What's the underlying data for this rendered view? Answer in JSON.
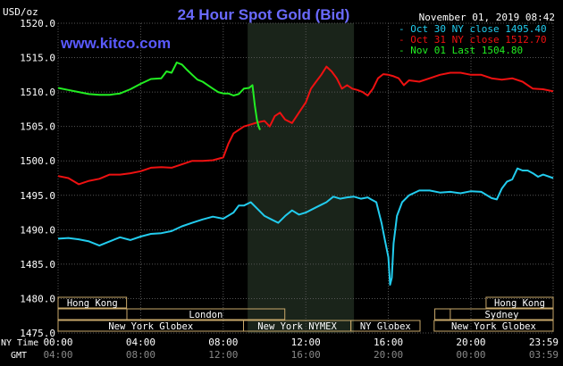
{
  "chart_data": {
    "type": "line",
    "title": "24 Hour Spot Gold (Bid)",
    "ylabel": "USD/oz",
    "website": "www.kitco.com",
    "date": "November 01, 2019 08:42",
    "ylim": [
      1475.0,
      1520.0
    ],
    "ytick_labels": [
      "1520.0",
      "1515.0",
      "1510.0",
      "1505.0",
      "1500.0",
      "1495.0",
      "1490.0",
      "1485.0",
      "1480.0",
      "1475.0"
    ],
    "x_range_minutes": [
      0,
      1439
    ],
    "ny_tick_labels": [
      "00:00",
      "04:00",
      "08:00",
      "12:00",
      "16:00",
      "20:00",
      "23:59"
    ],
    "gmt_tick_labels": [
      "04:00",
      "08:00",
      "12:00",
      "16:00",
      "20:00",
      "00:00",
      "03:59"
    ],
    "ny_time_label": "NY Time",
    "gmt_label": "GMT",
    "highlight_range_minutes": [
      551,
      860
    ],
    "colors": {
      "background": "#000000",
      "grid": "#555555",
      "title": "#6a6aff",
      "website": "#5a5aff",
      "session_box": "#c8a86a",
      "axis_text": "#ffffff",
      "tick_text_gmt": "#888888",
      "highlight": "#1a241a"
    },
    "series": [
      {
        "name": "Oct 30 NY close 1495.40",
        "color": "#22ccee",
        "points": [
          [
            0,
            1488.7
          ],
          [
            30,
            1488.8
          ],
          [
            60,
            1488.6
          ],
          [
            90,
            1488.3
          ],
          [
            120,
            1487.7
          ],
          [
            150,
            1488.3
          ],
          [
            180,
            1488.9
          ],
          [
            210,
            1488.5
          ],
          [
            240,
            1489.0
          ],
          [
            270,
            1489.4
          ],
          [
            300,
            1489.5
          ],
          [
            330,
            1489.8
          ],
          [
            360,
            1490.5
          ],
          [
            390,
            1491.0
          ],
          [
            420,
            1491.5
          ],
          [
            450,
            1491.9
          ],
          [
            480,
            1491.6
          ],
          [
            510,
            1492.5
          ],
          [
            525,
            1493.5
          ],
          [
            540,
            1493.5
          ],
          [
            560,
            1494.0
          ],
          [
            580,
            1493.0
          ],
          [
            600,
            1492.0
          ],
          [
            620,
            1491.5
          ],
          [
            640,
            1491.0
          ],
          [
            660,
            1492.0
          ],
          [
            680,
            1492.8
          ],
          [
            700,
            1492.2
          ],
          [
            720,
            1492.5
          ],
          [
            740,
            1493.0
          ],
          [
            760,
            1493.5
          ],
          [
            780,
            1494.0
          ],
          [
            800,
            1494.8
          ],
          [
            820,
            1494.5
          ],
          [
            840,
            1494.7
          ],
          [
            860,
            1494.8
          ],
          [
            880,
            1494.5
          ],
          [
            900,
            1494.7
          ],
          [
            910,
            1494.4
          ],
          [
            925,
            1494.0
          ],
          [
            940,
            1491.0
          ],
          [
            950,
            1488.5
          ],
          [
            960,
            1486.0
          ],
          [
            965,
            1482.0
          ],
          [
            970,
            1483.0
          ],
          [
            975,
            1488.0
          ],
          [
            985,
            1492.0
          ],
          [
            1000,
            1494.0
          ],
          [
            1020,
            1495.0
          ],
          [
            1050,
            1495.7
          ],
          [
            1080,
            1495.7
          ],
          [
            1110,
            1495.4
          ],
          [
            1140,
            1495.5
          ],
          [
            1170,
            1495.3
          ],
          [
            1200,
            1495.6
          ],
          [
            1230,
            1495.5
          ],
          [
            1260,
            1494.6
          ],
          [
            1275,
            1494.4
          ],
          [
            1290,
            1496.0
          ],
          [
            1305,
            1497.0
          ],
          [
            1320,
            1497.3
          ],
          [
            1335,
            1498.9
          ],
          [
            1350,
            1498.6
          ],
          [
            1365,
            1498.6
          ],
          [
            1380,
            1498.2
          ],
          [
            1395,
            1497.7
          ],
          [
            1410,
            1498.0
          ],
          [
            1439,
            1497.5
          ]
        ]
      },
      {
        "name": "Oct 31 NY close 1512.70",
        "color": "#ee1111",
        "points": [
          [
            0,
            1497.8
          ],
          [
            30,
            1497.5
          ],
          [
            60,
            1496.6
          ],
          [
            90,
            1497.1
          ],
          [
            120,
            1497.4
          ],
          [
            150,
            1498.0
          ],
          [
            180,
            1498.0
          ],
          [
            210,
            1498.2
          ],
          [
            240,
            1498.5
          ],
          [
            270,
            1499.0
          ],
          [
            300,
            1499.1
          ],
          [
            330,
            1499.0
          ],
          [
            360,
            1499.5
          ],
          [
            390,
            1500.0
          ],
          [
            420,
            1500.0
          ],
          [
            450,
            1500.1
          ],
          [
            480,
            1500.5
          ],
          [
            495,
            1502.5
          ],
          [
            510,
            1504.0
          ],
          [
            540,
            1505.0
          ],
          [
            560,
            1505.3
          ],
          [
            580,
            1505.6
          ],
          [
            600,
            1505.8
          ],
          [
            615,
            1505.0
          ],
          [
            630,
            1506.5
          ],
          [
            645,
            1507.0
          ],
          [
            660,
            1506.0
          ],
          [
            680,
            1505.5
          ],
          [
            700,
            1507.0
          ],
          [
            720,
            1508.5
          ],
          [
            735,
            1510.5
          ],
          [
            750,
            1511.5
          ],
          [
            765,
            1512.5
          ],
          [
            780,
            1513.7
          ],
          [
            795,
            1513.0
          ],
          [
            810,
            1512.0
          ],
          [
            825,
            1510.5
          ],
          [
            840,
            1511.0
          ],
          [
            855,
            1510.5
          ],
          [
            870,
            1510.3
          ],
          [
            885,
            1510.0
          ],
          [
            900,
            1509.5
          ],
          [
            915,
            1510.5
          ],
          [
            930,
            1512.0
          ],
          [
            945,
            1512.6
          ],
          [
            960,
            1512.5
          ],
          [
            975,
            1512.3
          ],
          [
            990,
            1512.0
          ],
          [
            1005,
            1511.0
          ],
          [
            1020,
            1511.7
          ],
          [
            1050,
            1511.5
          ],
          [
            1080,
            1512.0
          ],
          [
            1110,
            1512.5
          ],
          [
            1140,
            1512.8
          ],
          [
            1170,
            1512.8
          ],
          [
            1200,
            1512.5
          ],
          [
            1230,
            1512.5
          ],
          [
            1260,
            1512.0
          ],
          [
            1290,
            1511.8
          ],
          [
            1320,
            1512.0
          ],
          [
            1350,
            1511.5
          ],
          [
            1380,
            1510.5
          ],
          [
            1410,
            1510.4
          ],
          [
            1439,
            1510.1
          ]
        ]
      },
      {
        "name": "Nov 01 Last 1504.80",
        "color": "#22ee22",
        "points": [
          [
            0,
            1510.6
          ],
          [
            30,
            1510.3
          ],
          [
            60,
            1510.0
          ],
          [
            90,
            1509.7
          ],
          [
            120,
            1509.6
          ],
          [
            150,
            1509.6
          ],
          [
            180,
            1509.8
          ],
          [
            210,
            1510.4
          ],
          [
            240,
            1511.2
          ],
          [
            270,
            1511.9
          ],
          [
            300,
            1512.0
          ],
          [
            315,
            1513.0
          ],
          [
            330,
            1512.8
          ],
          [
            345,
            1514.3
          ],
          [
            360,
            1514.0
          ],
          [
            375,
            1513.2
          ],
          [
            390,
            1512.5
          ],
          [
            405,
            1511.8
          ],
          [
            420,
            1511.5
          ],
          [
            435,
            1511.0
          ],
          [
            450,
            1510.5
          ],
          [
            465,
            1510.0
          ],
          [
            480,
            1509.8
          ],
          [
            495,
            1509.8
          ],
          [
            510,
            1509.5
          ],
          [
            525,
            1509.7
          ],
          [
            540,
            1510.5
          ],
          [
            555,
            1510.6
          ],
          [
            565,
            1511.0
          ],
          [
            572,
            1508.0
          ],
          [
            578,
            1506.0
          ],
          [
            583,
            1505.0
          ],
          [
            587,
            1504.5
          ]
        ]
      }
    ],
    "sessions": [
      {
        "label": "Hong Kong",
        "start": 0,
        "end": 199,
        "row": 0
      },
      {
        "label": "London",
        "start": 0,
        "end": 200,
        "row": 1,
        "open_left": true
      },
      {
        "label": "London",
        "start": 200,
        "end": 659,
        "row": 1
      },
      {
        "label": "New York Globex",
        "start": 0,
        "end": 539,
        "row": 2
      },
      {
        "label": "New York NYMEX",
        "start": 539,
        "end": 851,
        "row": 2
      },
      {
        "label": "NY Globex",
        "start": 851,
        "end": 1052,
        "row": 2
      },
      {
        "label": "New York Globex",
        "start": 1093,
        "end": 1439,
        "row": 2
      },
      {
        "label": "Sydney",
        "start": 1095,
        "end": 1439,
        "row": 1,
        "open_left": true
      },
      {
        "label": "Sydney",
        "start": 1140,
        "end": 1439,
        "row": 1
      },
      {
        "label": "Hong Kong",
        "start": 1244,
        "end": 1439,
        "row": 0
      }
    ]
  }
}
